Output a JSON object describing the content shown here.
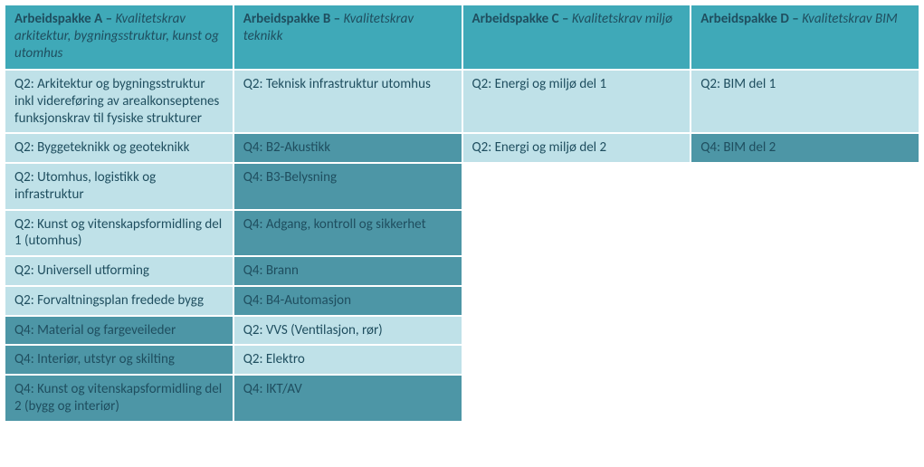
{
  "colors": {
    "header_bg": "#3fa9b8",
    "light_bg": "#bfe1e8",
    "dark_bg": "#4d96a6",
    "header_text": "#ffffff",
    "light_text": "#1f4e5f",
    "dark_text": "#ffffff",
    "border": "#ffffff"
  },
  "columns": [
    {
      "bold": "Arbeidspakke A – ",
      "italic": "Kvalitetskrav arkitektur, bygningsstruktur, kunst og utomhus"
    },
    {
      "bold": "Arbeidspakke B – ",
      "italic": "Kvalitetskrav teknikk"
    },
    {
      "bold": "Arbeidspakke C – ",
      "italic": "Kvalitetskrav miljø"
    },
    {
      "bold": "Arbeidspakke D – ",
      "italic": "Kvalitetskrav BIM"
    }
  ],
  "rows": [
    [
      {
        "text": "Q2: Arkitektur og bygningsstruktur inkl videreføring av arealkonseptenes funksjonskrav til fysiske strukturer",
        "shade": "light"
      },
      {
        "text": "Q2: Teknisk infrastruktur utomhus",
        "shade": "light"
      },
      {
        "text": "Q2: Energi og miljø del 1",
        "shade": "light"
      },
      {
        "text": "Q2: BIM del 1",
        "shade": "light"
      }
    ],
    [
      {
        "text": "Q2: Byggeteknikk og geoteknikk",
        "shade": "light"
      },
      {
        "text": "Q4: B2-Akustikk",
        "shade": "dark"
      },
      {
        "text": "Q2: Energi og miljø del 2",
        "shade": "light"
      },
      {
        "text": "Q4: BIM del 2",
        "shade": "dark"
      }
    ],
    [
      {
        "text": "Q2: Utomhus, logistikk og infrastruktur",
        "shade": "light"
      },
      {
        "text": "Q4: B3-Belysning",
        "shade": "dark"
      },
      {
        "text": "",
        "shade": "empty"
      },
      {
        "text": "",
        "shade": "empty"
      }
    ],
    [
      {
        "text": "Q2: Kunst og vitenskapsformidling del 1 (utomhus)",
        "shade": "light"
      },
      {
        "text": "Q4: Adgang, kontroll og sikkerhet",
        "shade": "dark"
      },
      {
        "text": "",
        "shade": "empty"
      },
      {
        "text": "",
        "shade": "empty"
      }
    ],
    [
      {
        "text": "Q2: Universell utforming",
        "shade": "light"
      },
      {
        "text": "Q4: Brann",
        "shade": "dark"
      },
      {
        "text": "",
        "shade": "empty"
      },
      {
        "text": "",
        "shade": "empty"
      }
    ],
    [
      {
        "text": "Q2: Forvaltningsplan fredede bygg",
        "shade": "light"
      },
      {
        "text": "Q4: B4-Automasjon",
        "shade": "dark"
      },
      {
        "text": "",
        "shade": "empty"
      },
      {
        "text": "",
        "shade": "empty"
      }
    ],
    [
      {
        "text": "Q4: Material og fargeveileder",
        "shade": "dark"
      },
      {
        "text": "Q2: VVS (Ventilasjon, rør)",
        "shade": "light"
      },
      {
        "text": "",
        "shade": "empty"
      },
      {
        "text": "",
        "shade": "empty"
      }
    ],
    [
      {
        "text": "Q4: Interiør, utstyr og skilting",
        "shade": "dark"
      },
      {
        "text": "Q2: Elektro",
        "shade": "light"
      },
      {
        "text": "",
        "shade": "empty"
      },
      {
        "text": "",
        "shade": "empty"
      }
    ],
    [
      {
        "text": "Q4: Kunst og vitenskapsformidling del 2 (bygg og interiør)",
        "shade": "dark"
      },
      {
        "text": "Q4: IKT/AV",
        "shade": "dark"
      },
      {
        "text": "",
        "shade": "empty"
      },
      {
        "text": "",
        "shade": "empty"
      }
    ]
  ]
}
